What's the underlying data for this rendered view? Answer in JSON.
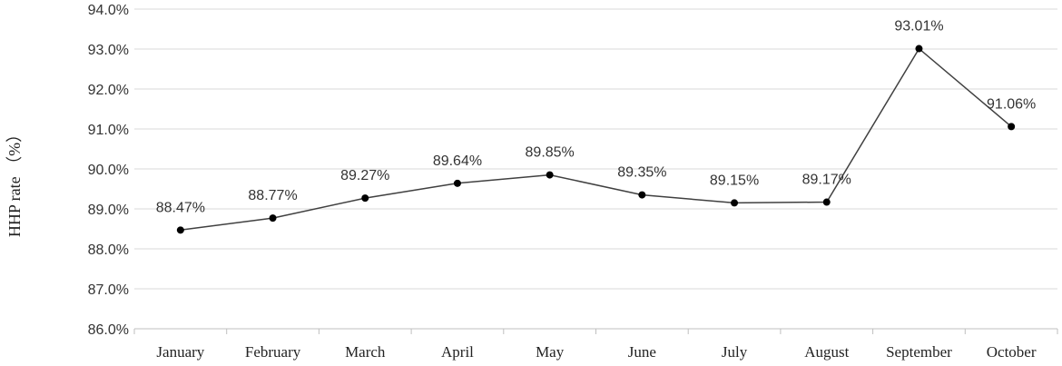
{
  "chart_data": {
    "type": "line",
    "ylabel": "HHP rate （%）",
    "xlabel": "",
    "categories": [
      "January",
      "February",
      "March",
      "April",
      "May",
      "June",
      "July",
      "August",
      "September",
      "October"
    ],
    "values": [
      88.47,
      88.77,
      89.27,
      89.64,
      89.85,
      89.35,
      89.15,
      89.17,
      93.01,
      91.06
    ],
    "data_labels": [
      "88.47%",
      "88.77%",
      "89.27%",
      "89.64%",
      "89.85%",
      "89.35%",
      "89.15%",
      "89.17%",
      "93.01%",
      "91.06%"
    ],
    "ylim": [
      86.0,
      94.0
    ],
    "yticks": [
      "86.0%",
      "87.0%",
      "88.0%",
      "89.0%",
      "90.0%",
      "91.0%",
      "92.0%",
      "93.0%",
      "94.0%"
    ],
    "grid": true,
    "legend": "none",
    "colors": {
      "line": "#404040",
      "marker": "#000000",
      "grid": "#d9d9d9"
    }
  }
}
